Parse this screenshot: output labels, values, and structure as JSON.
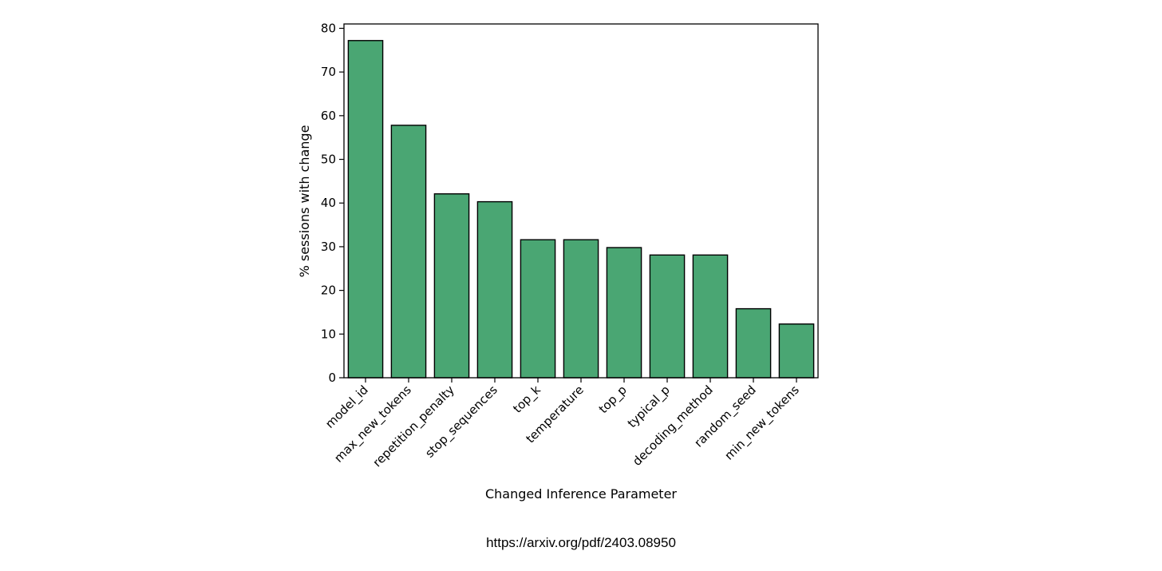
{
  "chart_data": {
    "type": "bar",
    "categories": [
      "model_id",
      "max_new_tokens",
      "repetition_penalty",
      "stop_sequences",
      "top_k",
      "temperature",
      "top_p",
      "typical_p",
      "decoding_method",
      "random_seed",
      "min_new_tokens"
    ],
    "values": [
      77.2,
      57.8,
      42.1,
      40.3,
      31.6,
      31.6,
      29.8,
      28.1,
      28.1,
      15.8,
      12.3
    ],
    "xlabel": "Changed Inference Parameter",
    "ylabel": "% sessions with change",
    "ylim": [
      0,
      81
    ],
    "yticks": [
      0,
      10,
      20,
      30,
      40,
      50,
      60,
      70,
      80
    ],
    "bar_color": "#4aa673",
    "edge_color": "#000000",
    "grid": false
  },
  "caption": {
    "source_url": "https://arxiv.org/pdf/2403.08950"
  }
}
